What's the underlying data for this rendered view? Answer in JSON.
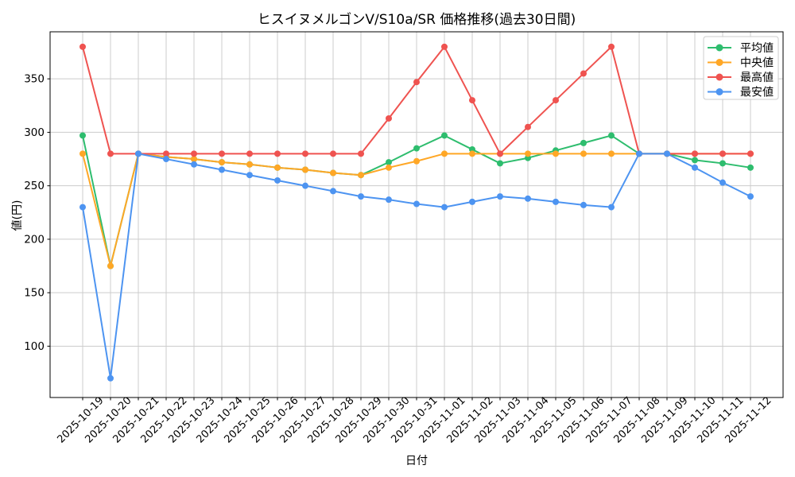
{
  "chart_data": {
    "type": "line",
    "title": "ヒスイヌメルゴンV/S10a/SR 価格推移(過去30日間)",
    "xlabel": "日付",
    "ylabel": "値(円)",
    "categories": [
      "2025-10-19",
      "2025-10-20",
      "2025-10-21",
      "2025-10-22",
      "2025-10-23",
      "2025-10-24",
      "2025-10-25",
      "2025-10-26",
      "2025-10-27",
      "2025-10-28",
      "2025-10-29",
      "2025-10-30",
      "2025-10-31",
      "2025-11-01",
      "2025-11-02",
      "2025-11-03",
      "2025-11-04",
      "2025-11-05",
      "2025-11-06",
      "2025-11-07",
      "2025-11-08",
      "2025-11-09",
      "2025-11-10",
      "2025-11-11",
      "2025-11-12"
    ],
    "yticks": [
      100,
      150,
      200,
      250,
      300,
      350
    ],
    "ylim": [
      52,
      394
    ],
    "grid": true,
    "legend_position": "upper-right",
    "series": [
      {
        "key": "average",
        "name": "平均値",
        "color": "#2ebd6e",
        "values": [
          297,
          175,
          280,
          277,
          275,
          272,
          270,
          267,
          265,
          262,
          260,
          272,
          285,
          297,
          284,
          271,
          276,
          283,
          290,
          297,
          280,
          280,
          274,
          271,
          267
        ]
      },
      {
        "key": "median",
        "name": "中央値",
        "color": "#ffa726",
        "values": [
          280,
          175,
          280,
          277,
          275,
          272,
          270,
          267,
          265,
          262,
          260,
          267,
          273,
          280,
          280,
          280,
          280,
          280,
          280,
          280,
          280,
          280,
          280,
          280,
          280
        ]
      },
      {
        "key": "max",
        "name": "最高値",
        "color": "#ef5350",
        "values": [
          380,
          280,
          280,
          280,
          280,
          280,
          280,
          280,
          280,
          280,
          280,
          313,
          347,
          380,
          330,
          280,
          305,
          330,
          355,
          380,
          280,
          280,
          280,
          280,
          280
        ]
      },
      {
        "key": "min",
        "name": "最安値",
        "color": "#4d94f1",
        "values": [
          230,
          70,
          280,
          275,
          270,
          265,
          260,
          255,
          250,
          245,
          240,
          237,
          233,
          230,
          235,
          240,
          238,
          235,
          232,
          230,
          280,
          280,
          267,
          253,
          240
        ]
      }
    ],
    "colors": {
      "grid": "#cccccc",
      "axis": "#000000",
      "background": "#ffffff",
      "legend_border": "#cccccc"
    }
  }
}
